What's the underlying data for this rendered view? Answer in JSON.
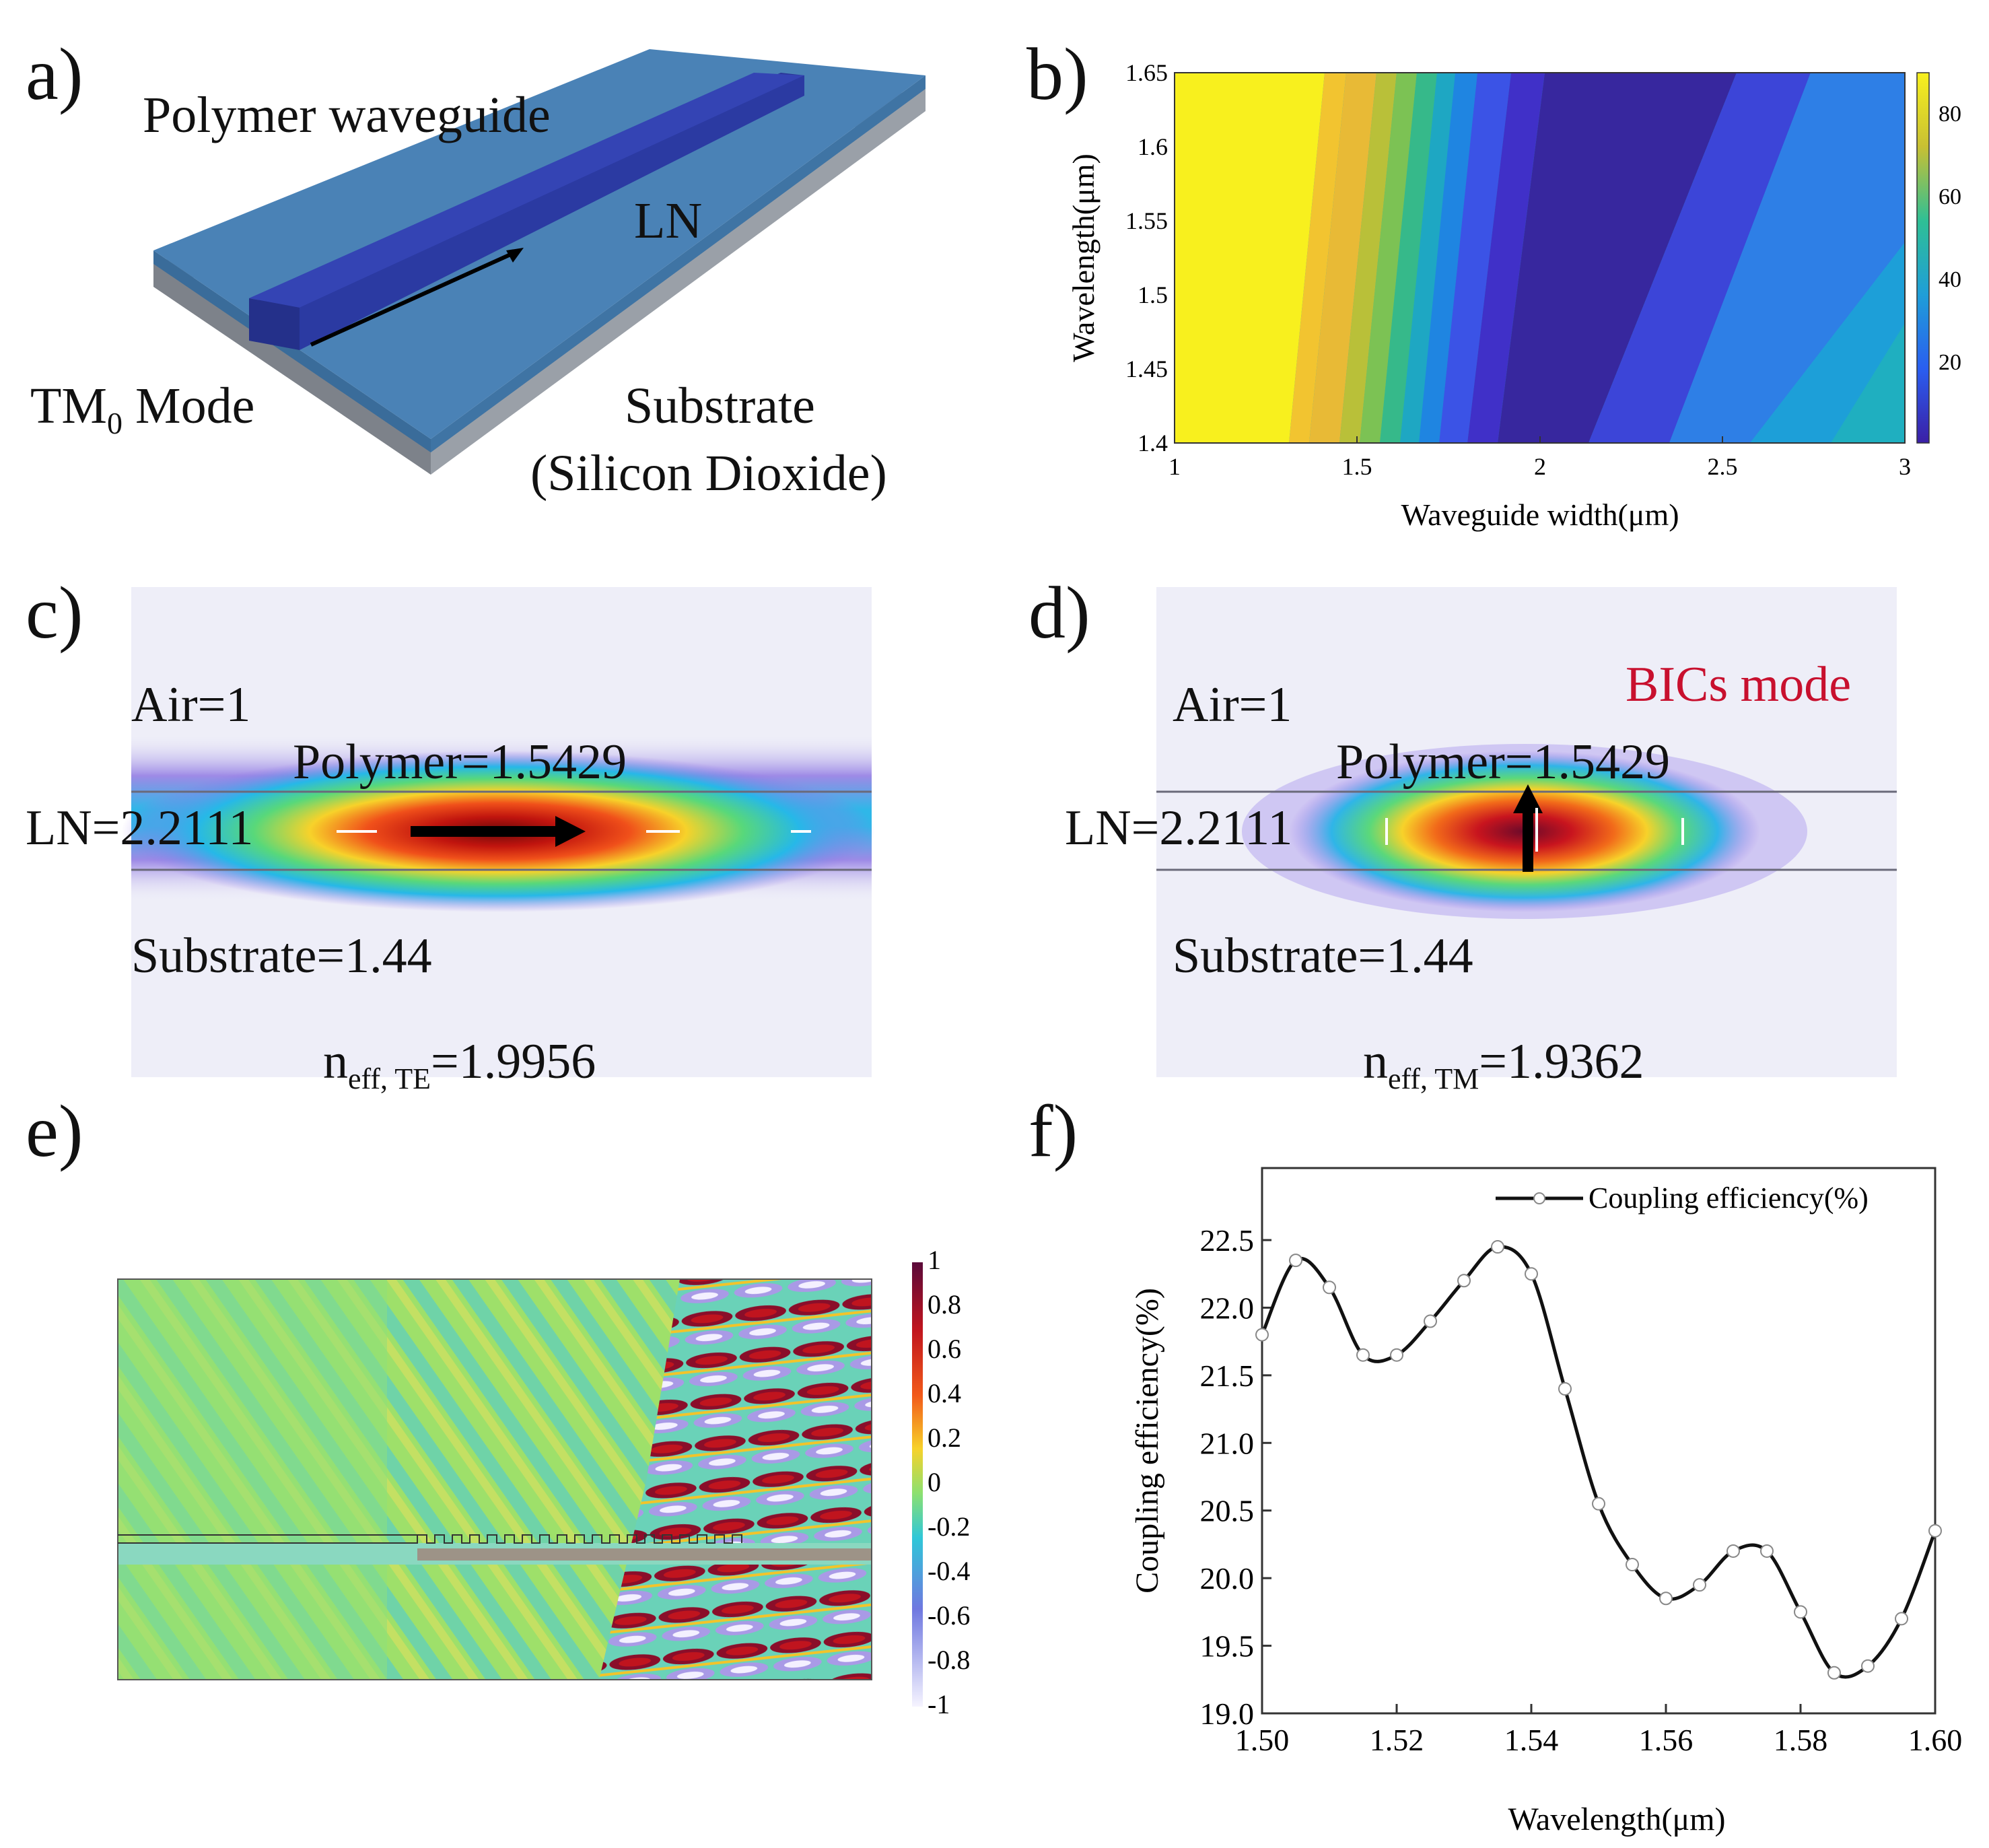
{
  "panels": {
    "a": {
      "letter": "a)",
      "labels": {
        "polymer": "Polymer waveguide",
        "ln": "LN",
        "mode_main": "TM",
        "mode_sub": "0",
        "mode_tail": " Mode",
        "substrate_line1": "Substrate",
        "substrate_line2": "(Silicon Dioxide)"
      },
      "colors": {
        "slab_top": "#4a82b6",
        "waveguide": "#2f3fae",
        "substrate_edge": "#8a8f99"
      }
    },
    "b": {
      "letter": "b)",
      "xlabel": "Waveguide width(μm)",
      "ylabel": "Wavelength(μm)",
      "xticks": [
        "1",
        "1.5",
        "2",
        "2.5",
        "3"
      ],
      "yticks": [
        "1.65",
        "1.6",
        "1.55",
        "1.5",
        "1.45",
        "1.4"
      ],
      "colorbar_ticks": [
        "80",
        "60",
        "40",
        "20"
      ],
      "xlim": [
        1,
        3
      ],
      "ylim": [
        1.4,
        1.65
      ],
      "colormap": "parula"
    },
    "c": {
      "letter": "c)",
      "air": "Air=1",
      "polymer": "Polymer=1.5429",
      "ln": "LN=2.2111",
      "substrate": "Substrate=1.44",
      "neff_main": "n",
      "neff_sub": "eff, TE",
      "neff_value": "=1.9956"
    },
    "d": {
      "letter": "d)",
      "air": "Air=1",
      "bics": "BICs mode",
      "polymer": "Polymer=1.5429",
      "ln": "LN=2.2111",
      "substrate": "Substrate=1.44",
      "neff_main": "n",
      "neff_sub": "eff, TM",
      "neff_value": "=1.9362",
      "bics_color": "#c8102e"
    },
    "e": {
      "letter": "e)",
      "colorbar_ticks": [
        "1",
        "0.8",
        "0.6",
        "0.4",
        "0.2",
        "0",
        "-0.2",
        "-0.4",
        "-0.6",
        "-0.8",
        "-1"
      ]
    },
    "f": {
      "letter": "f)"
    }
  },
  "chart_data": [
    {
      "panel": "b",
      "type": "heatmap",
      "xlabel": "Waveguide width(μm)",
      "ylabel": "Wavelength(μm)",
      "xlim": [
        1,
        3
      ],
      "ylim": [
        1.4,
        1.65
      ],
      "colorbar_range": [
        5,
        90
      ],
      "colorbar_ticks": [
        80,
        60,
        40,
        20
      ]
    },
    {
      "panel": "f",
      "type": "line",
      "series": [
        {
          "name": "Coupling efficiency(%)",
          "x": [
            1.5,
            1.505,
            1.51,
            1.515,
            1.52,
            1.525,
            1.53,
            1.535,
            1.54,
            1.545,
            1.55,
            1.555,
            1.56,
            1.565,
            1.57,
            1.575,
            1.58,
            1.585,
            1.59,
            1.595,
            1.6
          ],
          "values": [
            21.8,
            22.35,
            22.15,
            21.65,
            21.65,
            21.9,
            22.2,
            22.45,
            22.25,
            21.4,
            20.55,
            20.1,
            19.85,
            19.95,
            20.2,
            20.2,
            19.75,
            19.3,
            19.35,
            19.7,
            20.35
          ]
        }
      ],
      "xlabel": "Wavelength(μm)",
      "ylabel": "Coupling efficiency(%)",
      "xlim": [
        1.5,
        1.6
      ],
      "ylim": [
        19.0,
        22.5
      ],
      "xticks": [
        "1.50",
        "1.52",
        "1.54",
        "1.56",
        "1.58",
        "1.60"
      ],
      "yticks": [
        "19.0",
        "19.5",
        "20.0",
        "20.5",
        "21.0",
        "21.5",
        "22.0",
        "22.5"
      ],
      "legend": "top-right",
      "grid": false
    }
  ]
}
